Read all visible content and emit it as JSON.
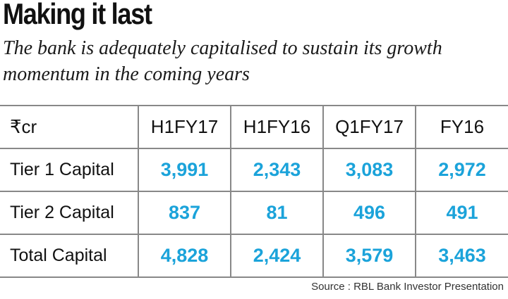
{
  "title": "Making it last",
  "subtitle": "The bank is adequately capitalised to sustain its growth momentum in the coming years",
  "source": "Source : RBL Bank Investor Presentation",
  "colors": {
    "value": "#1ba3da",
    "rule": "#888888",
    "text": "#111111"
  },
  "chart_data": {
    "type": "table",
    "unit_label": "₹cr",
    "columns": [
      "H1FY17",
      "H1FY16",
      "Q1FY17",
      "FY16"
    ],
    "rows": [
      {
        "label": "Tier 1 Capital",
        "values": [
          "3,991",
          "2,343",
          "3,083",
          "2,972"
        ]
      },
      {
        "label": "Tier 2 Capital",
        "values": [
          "837",
          "81",
          "496",
          "491"
        ]
      },
      {
        "label": "Total Capital",
        "values": [
          "4,828",
          "2,424",
          "3,579",
          "3,463"
        ]
      }
    ]
  }
}
